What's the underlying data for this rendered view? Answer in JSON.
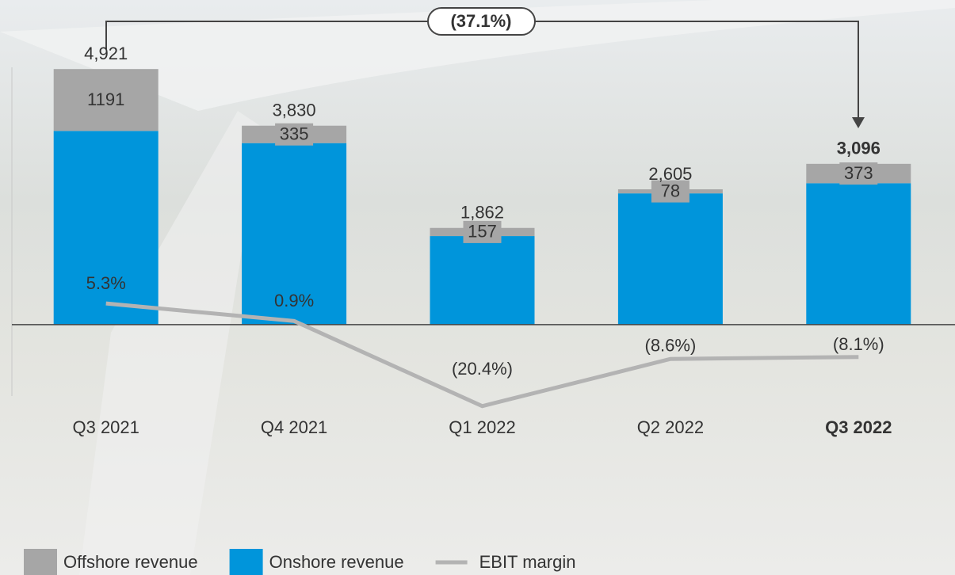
{
  "chart_data": {
    "type": "bar",
    "categories": [
      "Q3 2021",
      "Q4 2021",
      "Q1 2022",
      "Q2 2022",
      "Q3 2022"
    ],
    "highlight_index": 4,
    "series": [
      {
        "name": "Onshore revenue",
        "color": "#0095db",
        "values": [
          3730,
          3495,
          1705,
          2527,
          2723
        ]
      },
      {
        "name": "Offshore revenue",
        "color": "#a6a6a6",
        "values": [
          1191,
          335,
          157,
          78,
          373
        ]
      },
      {
        "name": "EBIT margin",
        "color": "#b3b3b3",
        "type": "line",
        "axis": "y2",
        "values": [
          5.3,
          0.9,
          -20.4,
          -8.6,
          -8.1
        ],
        "value_labels": [
          "5.3%",
          "0.9%",
          "(20.4%)",
          "(8.6%)",
          "(8.1%)"
        ]
      }
    ],
    "totals": [
      4921,
      3830,
      1862,
      2605,
      3096
    ],
    "totals_labels": [
      "4,921",
      "3,830",
      "1,862",
      "2,605",
      "3,096"
    ],
    "annotation": "(37.1%)",
    "ylim": [
      -2000,
      5000
    ],
    "y2lim": [
      -26,
      65
    ],
    "legend_order": [
      1,
      0,
      2
    ]
  }
}
